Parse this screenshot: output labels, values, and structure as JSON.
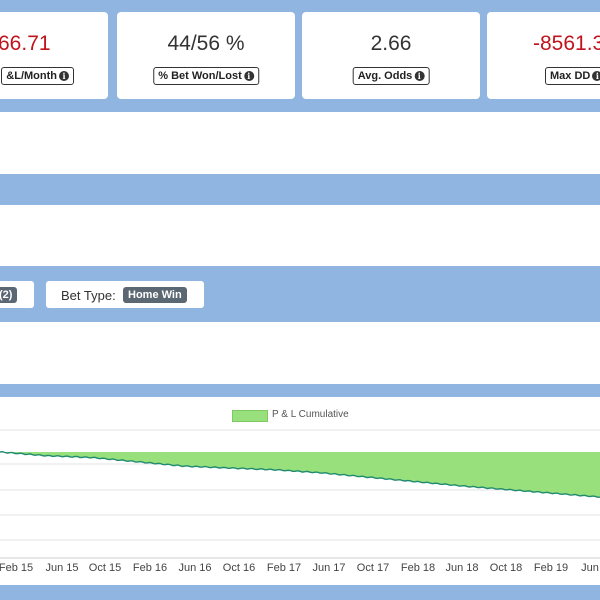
{
  "stats": [
    {
      "value": "66.71",
      "label": "&L/Month",
      "negative": true
    },
    {
      "value": "44/56 %",
      "label": "% Bet Won/Lost",
      "negative": false
    },
    {
      "value": "2.66",
      "label": "Avg. Odds",
      "negative": false
    },
    {
      "value": "-8561.3",
      "label": "Max DD",
      "negative": true
    }
  ],
  "filters": {
    "chip1_badge": "(2)",
    "bet_type_label": "Bet Type:",
    "bet_type_value": "Home Win"
  },
  "chart_data": {
    "type": "area",
    "series": [
      {
        "name": "P & L Cumulative",
        "color": "#97e07b"
      }
    ],
    "x_ticks": [
      "Feb 15",
      "Jun 15",
      "Oct 15",
      "Feb 16",
      "Jun 16",
      "Oct 16",
      "Feb 17",
      "Jun 17",
      "Oct 17",
      "Feb 18",
      "Jun 18",
      "Oct 18",
      "Feb 19",
      "Jun"
    ],
    "y_relative": [
      0.0,
      -0.6,
      -0.9,
      -1.6,
      -2.3,
      -2.6,
      -2.9,
      -3.4,
      -4.1,
      -4.8,
      -5.5,
      -6.1,
      -6.7,
      -7.3
    ],
    "grid": true
  }
}
